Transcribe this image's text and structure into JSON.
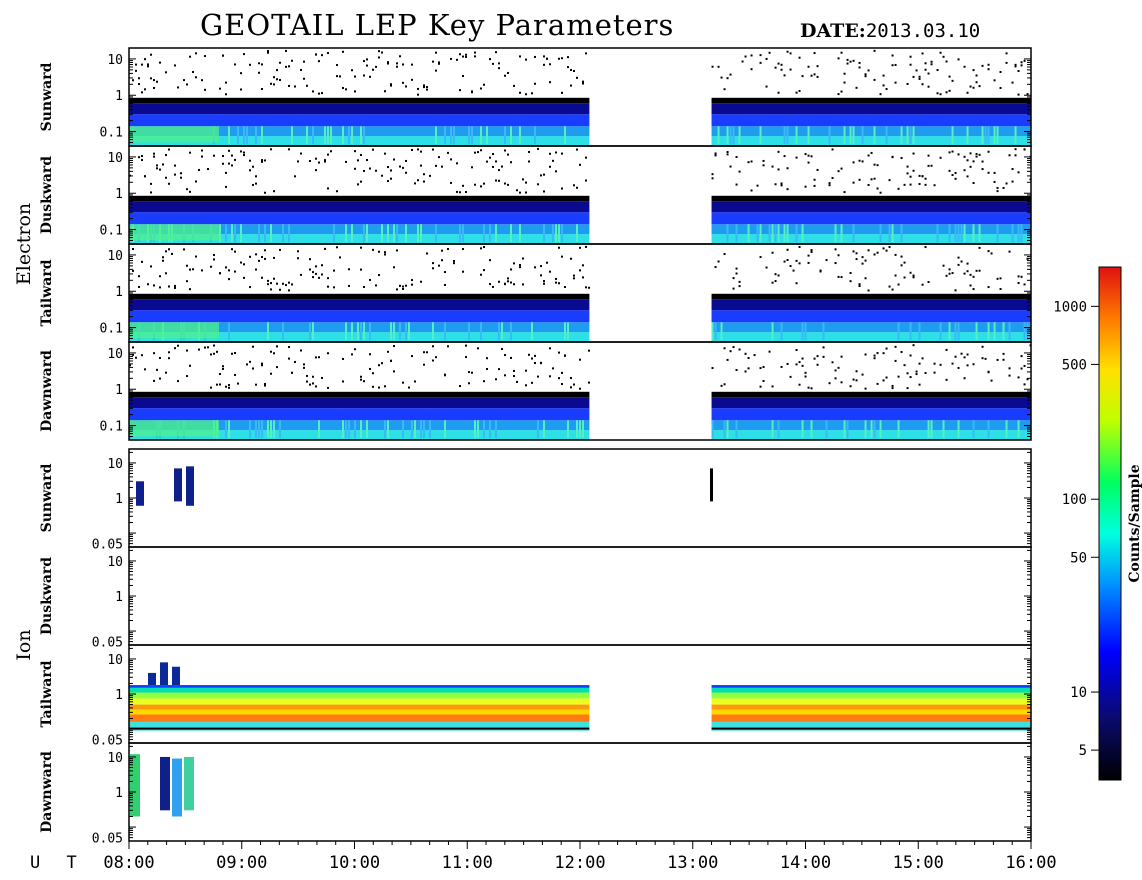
{
  "header": {
    "title": "GEOTAIL LEP Key Parameters",
    "date_label": "DATE:",
    "date_value": "2013.03.10"
  },
  "groups": [
    "Electron",
    "Ion"
  ],
  "colorbar": {
    "label": "Counts/Sample",
    "ticks": [
      "5",
      "10",
      "50",
      "100",
      "500",
      "1000"
    ],
    "tick_values": [
      5,
      10,
      50,
      100,
      500,
      1000
    ],
    "range": [
      3.5,
      1600
    ],
    "scale": "log"
  },
  "chart_data": {
    "type": "heatmap",
    "title": "GEOTAIL LEP Key Parameters",
    "date": "2013.03.10",
    "x_axis": {
      "label": "U T",
      "ticks": [
        "08:00",
        "09:00",
        "10:00",
        "11:00",
        "12:00",
        "13:00",
        "14:00",
        "15:00",
        "16:00"
      ],
      "range_hours": [
        8,
        16
      ]
    },
    "data_gap_ut": [
      "12:05",
      "13:10"
    ],
    "panels": [
      {
        "species": "Electron",
        "direction": "Sunward",
        "yticks": [
          "10",
          "1",
          "0.1"
        ],
        "ylim": [
          0.04,
          20
        ],
        "scale": "log",
        "yvals": [
          10,
          1,
          0.1
        ]
      },
      {
        "species": "Electron",
        "direction": "Duskward",
        "yticks": [
          "10",
          "1",
          "0.1"
        ],
        "ylim": [
          0.04,
          20
        ],
        "scale": "log",
        "yvals": [
          10,
          1,
          0.1
        ]
      },
      {
        "species": "Electron",
        "direction": "Tailward",
        "yticks": [
          "10",
          "1",
          "0.1"
        ],
        "ylim": [
          0.04,
          20
        ],
        "scale": "log",
        "yvals": [
          10,
          1,
          0.1
        ]
      },
      {
        "species": "Electron",
        "direction": "Dawnward",
        "yticks": [
          "10",
          "1",
          "0.1"
        ],
        "ylim": [
          0.04,
          20
        ],
        "scale": "log",
        "yvals": [
          10,
          1,
          0.1
        ]
      },
      {
        "species": "Ion",
        "direction": "Sunward",
        "yticks": [
          "10",
          "1",
          "0.05"
        ],
        "ylim": [
          0.04,
          25
        ],
        "scale": "log",
        "yvals": [
          10,
          1,
          0.05
        ]
      },
      {
        "species": "Ion",
        "direction": "Duskward",
        "yticks": [
          "10",
          "1",
          "0.05"
        ],
        "ylim": [
          0.04,
          25
        ],
        "scale": "log",
        "yvals": [
          10,
          1,
          0.05
        ]
      },
      {
        "species": "Ion",
        "direction": "Tailward",
        "yticks": [
          "10",
          "1",
          "0.05"
        ],
        "ylim": [
          0.04,
          25
        ],
        "scale": "log",
        "yvals": [
          10,
          1,
          0.05
        ]
      },
      {
        "species": "Ion",
        "direction": "Dawnward",
        "yticks": [
          "10",
          "1",
          "0.05"
        ],
        "ylim": [
          0.04,
          25
        ],
        "scale": "log",
        "yvals": [
          10,
          1,
          0.05
        ]
      }
    ]
  }
}
